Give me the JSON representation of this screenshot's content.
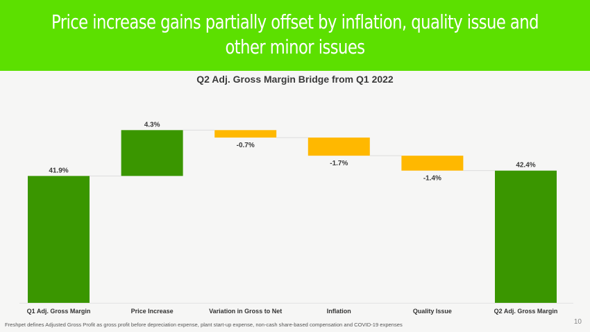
{
  "header": {
    "title": "Price increase gains partially offset by inflation, quality issue and other minor issues"
  },
  "footnote": "Freshpet defines Adjusted Gross Profit as gross profit before depreciation expense, plant start-up expense, non-cash share-based compensation and COVID-19 expenses",
  "page_number": "10",
  "colors": {
    "header": "#5ce000",
    "total": "#3a9600",
    "increase": "#3a9600",
    "decrease": "#ffb800"
  },
  "chart_data": {
    "type": "bar",
    "subtype": "waterfall",
    "title": "Q2 Adj. Gross Margin Bridge from Q1 2022",
    "xlabel": "",
    "ylabel": "",
    "categories": [
      "Q1 Adj. Gross Margin",
      "Price Increase",
      "Variation in Gross to Net",
      "Inflation",
      "Quality Issue",
      "Q2 Adj. Gross Margin"
    ],
    "values": [
      41.9,
      4.3,
      -0.7,
      -1.7,
      -1.4,
      42.4
    ],
    "kinds": [
      "total",
      "increase",
      "decrease",
      "decrease",
      "decrease",
      "total"
    ],
    "labels": [
      "41.9%",
      "4.3%",
      "-0.7%",
      "-1.7%",
      "-1.4%",
      "42.4%"
    ],
    "ylim": [
      30,
      47
    ],
    "grid": false,
    "legend": "none"
  }
}
